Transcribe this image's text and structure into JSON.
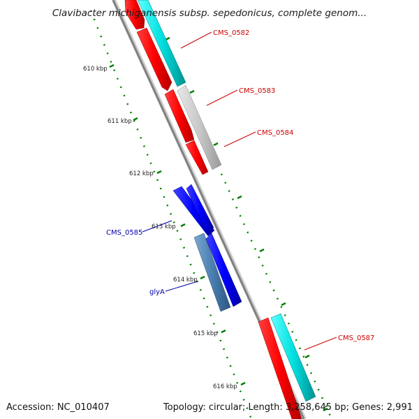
{
  "title": "Clavibacter michiganensis subsp. sepedonicus, complete genom...",
  "footer": {
    "accession": "Accession: NC_010407",
    "summary": "Topology: circular; Length: 3,258,645 bp; Genes: 2,991"
  },
  "ticks": [
    {
      "label": "610 kbp"
    },
    {
      "label": "611 kbp"
    },
    {
      "label": "612 kbp"
    },
    {
      "label": "613 kbp"
    },
    {
      "label": "614 kbp"
    },
    {
      "label": "615 kbp"
    },
    {
      "label": "616 kbp"
    }
  ],
  "gene_labels": [
    {
      "name": "CMS_0582",
      "color": "#cc0000"
    },
    {
      "name": "CMS_0583",
      "color": "#cc0000"
    },
    {
      "name": "CMS_0584",
      "color": "#cc0000"
    },
    {
      "name": "CMS_0585",
      "color": "#0000aa"
    },
    {
      "name": "glyA",
      "color": "#0000aa"
    },
    {
      "name": "CMS_0587",
      "color": "#cc0000"
    }
  ],
  "colors": {
    "forward_gene": "#ff0000",
    "reverse_gene": "#0000ff",
    "rna_or_other": "#00d0d0",
    "pseudo": "#c0c0c0",
    "highlighted": "#4a7fb0",
    "backbone": "#888888",
    "ticks": "#008000"
  }
}
